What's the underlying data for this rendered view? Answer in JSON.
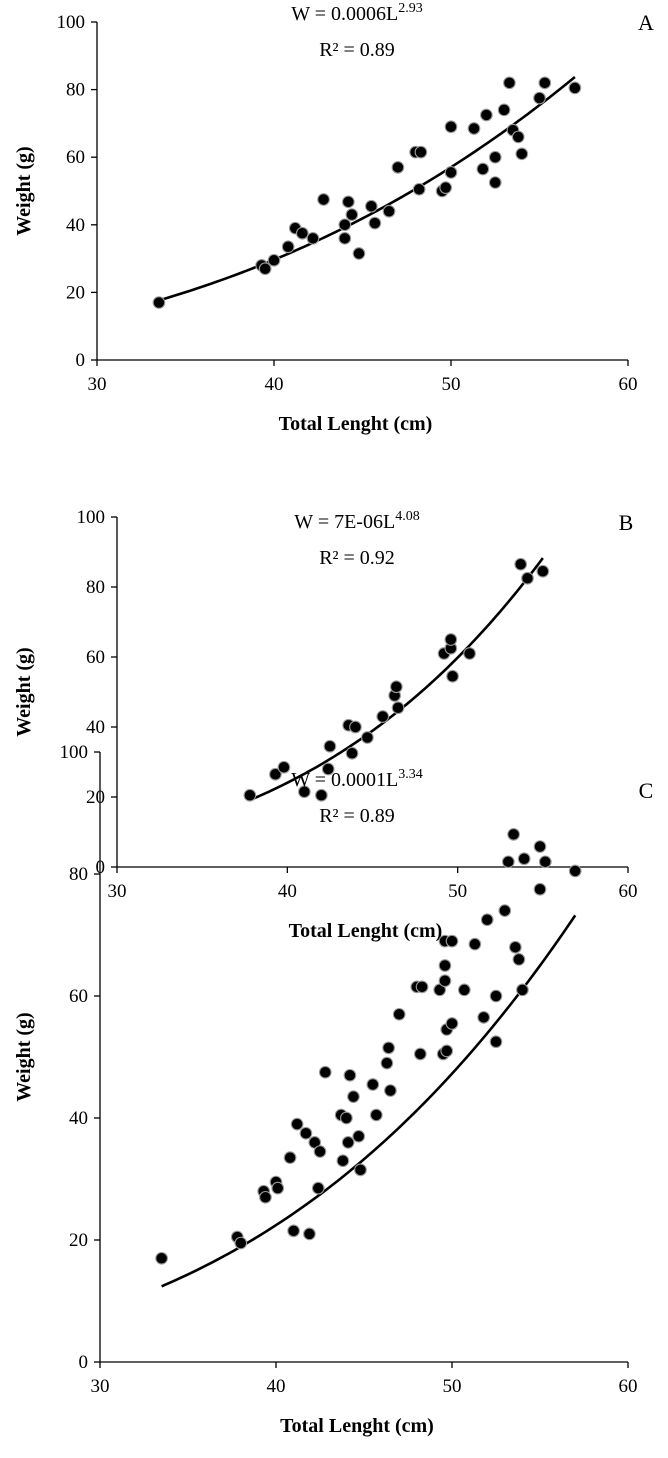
{
  "chart_data": [
    {
      "type": "scatter",
      "panel": "A",
      "equation": {
        "base": "W = 0.0006L",
        "exp": "2.93",
        "r2": "R² = 0.89"
      },
      "fit": {
        "a": 0.0006,
        "b": 2.93
      },
      "xlabel": "Total Lenght (cm)",
      "ylabel": "Weight (g)",
      "xlim": [
        30,
        60
      ],
      "ylim": [
        0,
        100
      ],
      "xticks": [
        30,
        40,
        50,
        60
      ],
      "yticks": [
        0,
        20,
        40,
        60,
        80,
        100
      ],
      "grid": false,
      "points": [
        [
          33.5,
          17
        ],
        [
          39.3,
          28
        ],
        [
          39.5,
          27
        ],
        [
          40,
          29.5
        ],
        [
          40.8,
          33.5
        ],
        [
          41.2,
          39
        ],
        [
          41.6,
          37.5
        ],
        [
          42.2,
          36
        ],
        [
          42.8,
          47.5
        ],
        [
          44,
          40
        ],
        [
          44,
          36
        ],
        [
          44.2,
          46.8
        ],
        [
          44.4,
          43
        ],
        [
          44.8,
          31.5
        ],
        [
          45.5,
          45.5
        ],
        [
          45.7,
          40.5
        ],
        [
          46.5,
          44
        ],
        [
          47,
          57
        ],
        [
          48,
          61.5
        ],
        [
          48.2,
          50.5
        ],
        [
          48.3,
          61.5
        ],
        [
          49.5,
          50
        ],
        [
          49.7,
          51
        ],
        [
          50,
          69
        ],
        [
          50,
          55.5
        ],
        [
          51.3,
          68.5
        ],
        [
          51.8,
          56.5
        ],
        [
          52,
          72.5
        ],
        [
          52.5,
          52.5
        ],
        [
          52.5,
          60
        ],
        [
          53,
          74
        ],
        [
          53.3,
          82
        ],
        [
          53.5,
          68
        ],
        [
          53.8,
          66
        ],
        [
          54,
          61
        ],
        [
          55,
          77.5
        ],
        [
          55.3,
          82
        ],
        [
          57,
          80.5
        ]
      ]
    },
    {
      "type": "scatter",
      "panel": "B",
      "equation": {
        "base": "W = 7E-06L",
        "exp": "4.08",
        "r2": "R² = 0.92"
      },
      "fit": {
        "a": 7e-06,
        "b": 4.08
      },
      "xlabel": "Total Lenght (cm)",
      "ylabel": "Weight (g)",
      "xlim": [
        30,
        60
      ],
      "ylim": [
        0,
        100
      ],
      "xticks": [
        30,
        40,
        50,
        60
      ],
      "yticks": [
        0,
        20,
        40,
        60,
        80,
        100
      ],
      "grid": false,
      "points": [
        [
          37.8,
          20.5
        ],
        [
          39.3,
          26.5
        ],
        [
          39.8,
          28.5
        ],
        [
          41,
          21.5
        ],
        [
          42,
          20.5
        ],
        [
          42.4,
          28
        ],
        [
          42.5,
          34.5
        ],
        [
          43.6,
          40.5
        ],
        [
          43.8,
          32.5
        ],
        [
          44,
          40
        ],
        [
          44.7,
          37
        ],
        [
          45.6,
          43
        ],
        [
          46.3,
          49
        ],
        [
          46.4,
          51.5
        ],
        [
          46.5,
          45.5
        ],
        [
          49.2,
          61
        ],
        [
          49.6,
          62.5
        ],
        [
          49.6,
          65
        ],
        [
          49.7,
          54.5
        ],
        [
          50.7,
          61
        ],
        [
          53.7,
          86.5
        ],
        [
          54.1,
          82.5
        ],
        [
          55,
          84.5
        ]
      ]
    },
    {
      "type": "scatter",
      "panel": "C",
      "equation": {
        "base": "W = 0.0001L",
        "exp": "3.34",
        "r2": "R² = 0.89"
      },
      "fit": {
        "a": 0.0001,
        "b": 3.34
      },
      "xlabel": "Total Lenght (cm)",
      "ylabel": "Weight (g)",
      "xlim": [
        30,
        60
      ],
      "ylim": [
        0,
        100
      ],
      "xticks": [
        30,
        40,
        50,
        60
      ],
      "yticks": [
        0,
        20,
        40,
        60,
        80,
        100
      ],
      "grid": false,
      "points": [
        [
          33.5,
          17
        ],
        [
          37.8,
          20.5
        ],
        [
          38,
          19.5
        ],
        [
          39.3,
          28
        ],
        [
          39.4,
          27
        ],
        [
          40,
          29.5
        ],
        [
          40.1,
          28.5
        ],
        [
          40.8,
          33.5
        ],
        [
          41,
          21.5
        ],
        [
          41.2,
          39
        ],
        [
          41.7,
          37.5
        ],
        [
          41.9,
          21
        ],
        [
          42.2,
          36
        ],
        [
          42.4,
          28.5
        ],
        [
          42.5,
          34.5
        ],
        [
          42.8,
          47.5
        ],
        [
          43.7,
          40.5
        ],
        [
          43.8,
          33
        ],
        [
          44,
          40
        ],
        [
          44.1,
          36
        ],
        [
          44.2,
          47
        ],
        [
          44.4,
          43.5
        ],
        [
          44.7,
          37
        ],
        [
          44.8,
          31.5
        ],
        [
          45.5,
          45.5
        ],
        [
          45.7,
          40.5
        ],
        [
          46.3,
          49
        ],
        [
          46.4,
          51.5
        ],
        [
          46.5,
          44.5
        ],
        [
          47,
          57
        ],
        [
          48,
          61.5
        ],
        [
          48.2,
          50.5
        ],
        [
          48.3,
          61.5
        ],
        [
          49.3,
          61
        ],
        [
          49.5,
          50.5
        ],
        [
          49.6,
          65
        ],
        [
          49.6,
          62.5
        ],
        [
          49.7,
          54.5
        ],
        [
          49.7,
          51
        ],
        [
          49.6,
          69
        ],
        [
          50,
          69
        ],
        [
          50,
          55.5
        ],
        [
          50.7,
          61
        ],
        [
          51.3,
          68.5
        ],
        [
          51.8,
          56.5
        ],
        [
          52,
          72.5
        ],
        [
          52.5,
          52.5
        ],
        [
          52.5,
          60
        ],
        [
          53,
          74
        ],
        [
          53.2,
          82
        ],
        [
          53.5,
          86.5
        ],
        [
          53.6,
          68
        ],
        [
          53.8,
          66
        ],
        [
          54,
          61
        ],
        [
          54.1,
          82.5
        ],
        [
          55,
          77.5
        ],
        [
          55,
          84.5
        ],
        [
          55.3,
          82
        ],
        [
          57,
          80.5
        ]
      ]
    }
  ]
}
